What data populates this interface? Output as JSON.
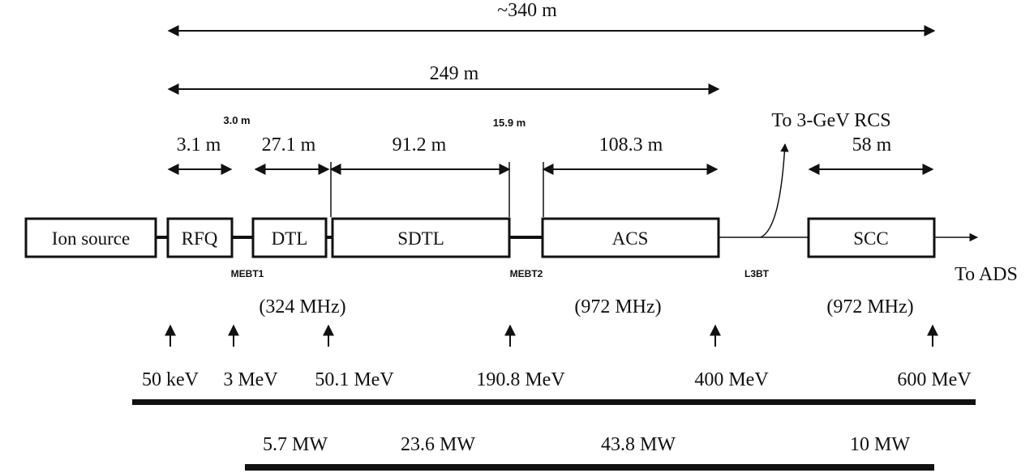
{
  "dimensions": {
    "total": "~340 m",
    "linac": "249 m",
    "mebt1_length": "3.0 m",
    "mebt2_length": "15.9 m",
    "rfq_length": "3.1 m",
    "dtl_length": "27.1 m",
    "sdtl_length": "91.2 m",
    "acs_length": "108.3 m",
    "scc_length": "58 m"
  },
  "components": {
    "ion_source": "Ion source",
    "rfq": "RFQ",
    "dtl": "DTL",
    "sdtl": "SDTL",
    "acs": "ACS",
    "scc": "SCC"
  },
  "transport_lines": {
    "mebt1": "MEBT1",
    "mebt2": "MEBT2",
    "l3bt": "L3BT"
  },
  "destinations": {
    "rcs": "To 3-GeV RCS",
    "ads": "To ADS"
  },
  "frequencies": {
    "low": "(324 MHz)",
    "acs": "(972 MHz)",
    "scc": "(972 MHz)"
  },
  "energies": [
    "50 keV",
    "3 MeV",
    "50.1 MeV",
    "190.8 MeV",
    "400 MeV",
    "600 MeV"
  ],
  "powers": [
    "5.7 MW",
    "23.6 MW",
    "43.8 MW",
    "10 MW"
  ]
}
